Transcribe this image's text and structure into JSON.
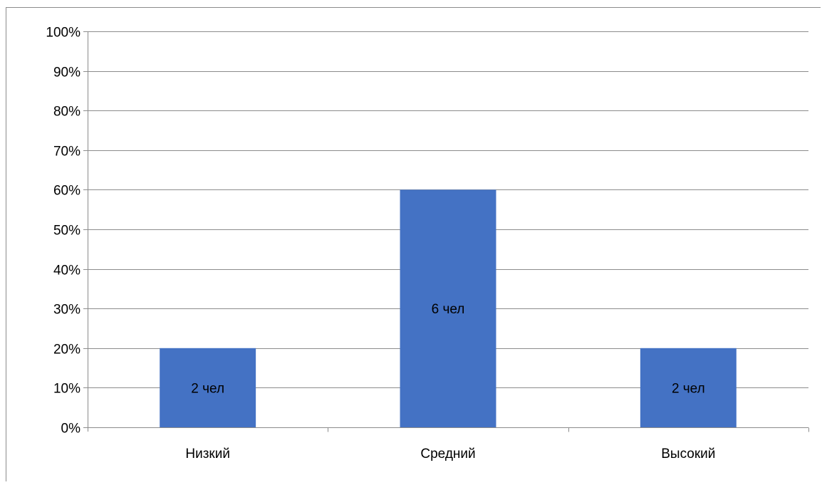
{
  "chart_data": {
    "type": "bar",
    "title": "",
    "xlabel": "",
    "ylabel": "",
    "categories": [
      "Низкий",
      "Средний",
      "Высокий"
    ],
    "values": [
      20,
      60,
      20
    ],
    "data_labels": [
      "2 чел",
      "6 чел",
      "2 чел"
    ],
    "ylim": [
      0,
      100
    ],
    "y_ticks": [
      0,
      10,
      20,
      30,
      40,
      50,
      60,
      70,
      80,
      90,
      100
    ],
    "y_tick_labels": [
      "0%",
      "10%",
      "20%",
      "30%",
      "40%",
      "50%",
      "60%",
      "70%",
      "80%",
      "90%",
      "100%"
    ],
    "grid": true,
    "legend": "none",
    "colors": {
      "bar": "#4472c4",
      "grid": "#8c8c8c",
      "axis": "#8c8c8c",
      "text": "#000000"
    }
  }
}
